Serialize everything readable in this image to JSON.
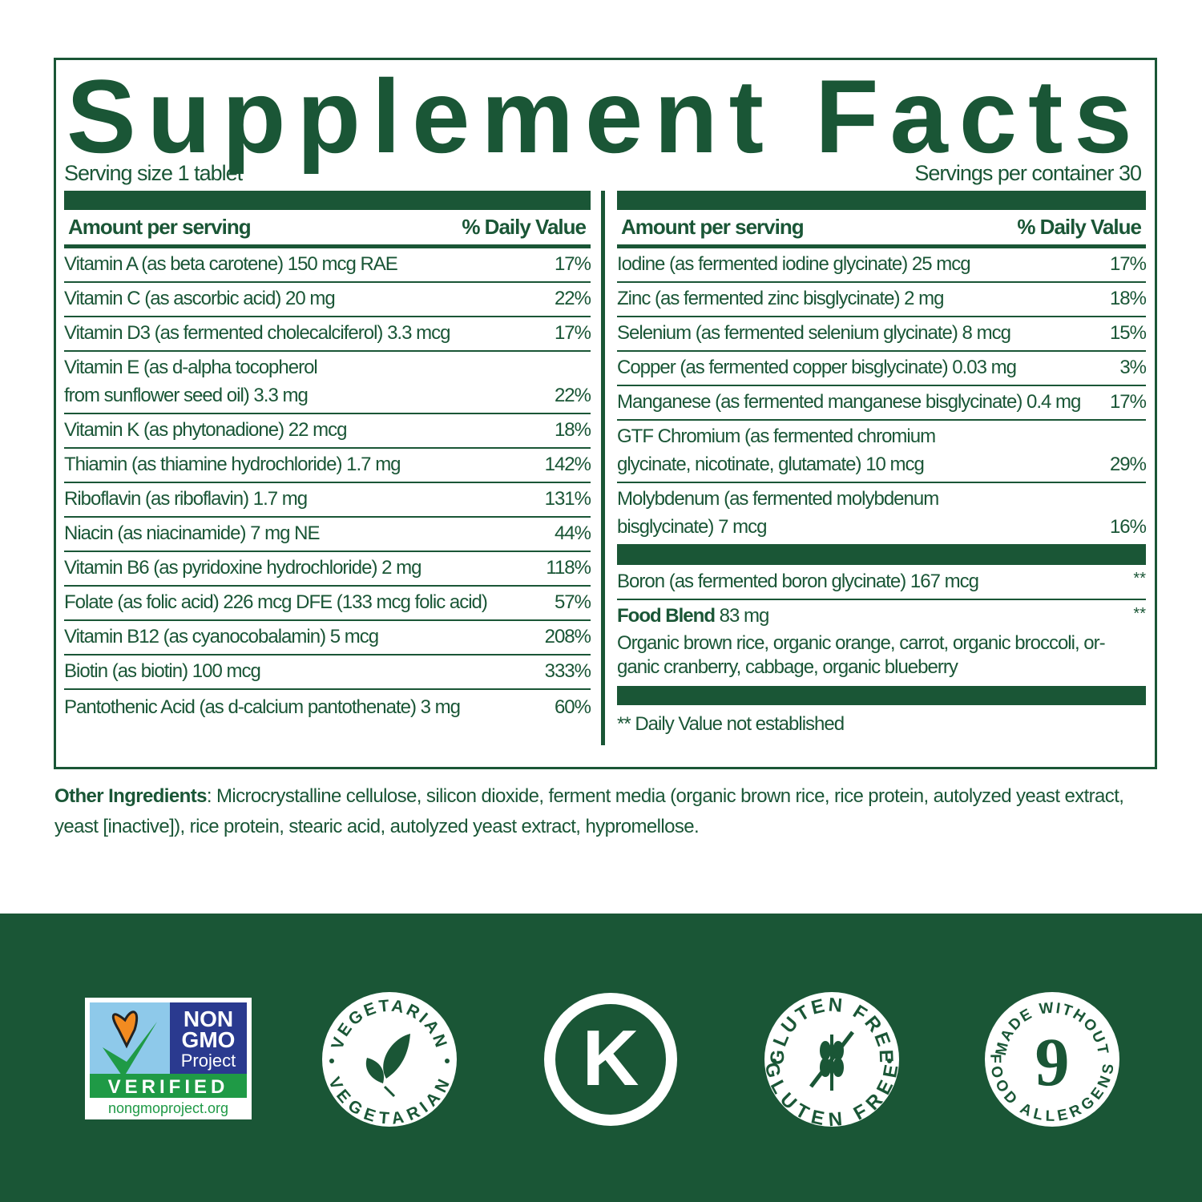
{
  "title": "Supplement Facts",
  "serving_size": "Serving size 1 tablet",
  "servings_per_container": "Servings per container 30",
  "header": {
    "amount": "Amount per serving",
    "dv": "% Daily Value"
  },
  "left_rows": [
    {
      "lines": [
        "Vitamin A (as beta carotene) 150 mcg RAE"
      ],
      "dv": "17%"
    },
    {
      "lines": [
        "Vitamin C (as ascorbic acid) 20 mg"
      ],
      "dv": "22%"
    },
    {
      "lines": [
        "Vitamin D3 (as fermented cholecalciferol) 3.3 mcg"
      ],
      "dv": "17%"
    },
    {
      "lines": [
        "Vitamin E (as d-alpha tocopherol",
        "from sunflower seed oil) 3.3 mg"
      ],
      "dv": "22%"
    },
    {
      "lines": [
        "Vitamin K (as phytonadione) 22 mcg"
      ],
      "dv": "18%"
    },
    {
      "lines": [
        "Thiamin (as thiamine hydrochloride) 1.7 mg"
      ],
      "dv": "142%"
    },
    {
      "lines": [
        "Riboflavin (as riboflavin) 1.7 mg"
      ],
      "dv": "131%"
    },
    {
      "lines": [
        "Niacin (as niacinamide) 7 mg NE"
      ],
      "dv": "44%"
    },
    {
      "lines": [
        "Vitamin B6 (as pyridoxine hydrochloride) 2 mg"
      ],
      "dv": "118%"
    },
    {
      "lines": [
        "Folate (as folic acid) 226 mcg DFE (133 mcg folic acid)"
      ],
      "dv": "57%"
    },
    {
      "lines": [
        "Vitamin B12 (as cyanocobalamin) 5 mcg"
      ],
      "dv": "208%"
    },
    {
      "lines": [
        "Biotin (as biotin) 100 mcg"
      ],
      "dv": "333%"
    },
    {
      "lines": [
        "Pantothenic Acid (as d-calcium pantothenate) 3 mg"
      ],
      "dv": "60%"
    }
  ],
  "right_rows": [
    {
      "lines": [
        "Iodine (as fermented iodine glycinate) 25 mcg"
      ],
      "dv": "17%"
    },
    {
      "lines": [
        "Zinc (as fermented zinc bisglycinate) 2 mg"
      ],
      "dv": "18%"
    },
    {
      "lines": [
        "Selenium (as fermented selenium glycinate) 8 mcg"
      ],
      "dv": "15%"
    },
    {
      "lines": [
        "Copper (as fermented copper bisglycinate) 0.03 mg"
      ],
      "dv": "3%"
    },
    {
      "lines": [
        "Manganese (as fermented manganese bisglycinate) 0.4 mg"
      ],
      "dv": "17%"
    },
    {
      "lines": [
        "GTF Chromium (as fermented chromium",
        "glycinate, nicotinate, glutamate) 10 mcg"
      ],
      "dv": "29%"
    },
    {
      "lines": [
        "Molybdenum (as fermented molybdenum",
        "bisglycinate) 7 mcg"
      ],
      "dv": "16%"
    }
  ],
  "boron": {
    "name": "Boron (as fermented boron glycinate) 167 mcg",
    "dv": "**"
  },
  "food_blend": {
    "name": "Food Blend",
    "amount": " 83 mg",
    "dv": "**",
    "line1": "Organic brown rice, organic orange, carrot, organic broccoli, or-",
    "line2": "ganic cranberry, cabbage, organic blueberry"
  },
  "footnote": "** Daily Value not established",
  "other_ingredients": {
    "label": "Other Ingredients",
    "text": ": Microcrystalline cellulose, silicon dioxide, ferment media (organic brown rice, rice protein, autolyzed yeast extract, yeast [inactive]), rice protein, stearic acid, autolyzed yeast extract, hypromellose."
  },
  "badges": {
    "nongmo": {
      "line1": "NON",
      "line2": "GMO",
      "line3": "Project",
      "verified": "VERIFIED",
      "url": "nongmoproject.org"
    },
    "vegetarian": "VEGETARIAN",
    "kosher": "K",
    "gluten_free": "GLUTEN FREE",
    "allergens": {
      "top": "MADE WITHOUT",
      "number": "9",
      "bottom": "FOOD ALLERGENS*"
    }
  },
  "colors": {
    "brand_green": "#1a5636",
    "white": "#ffffff"
  }
}
